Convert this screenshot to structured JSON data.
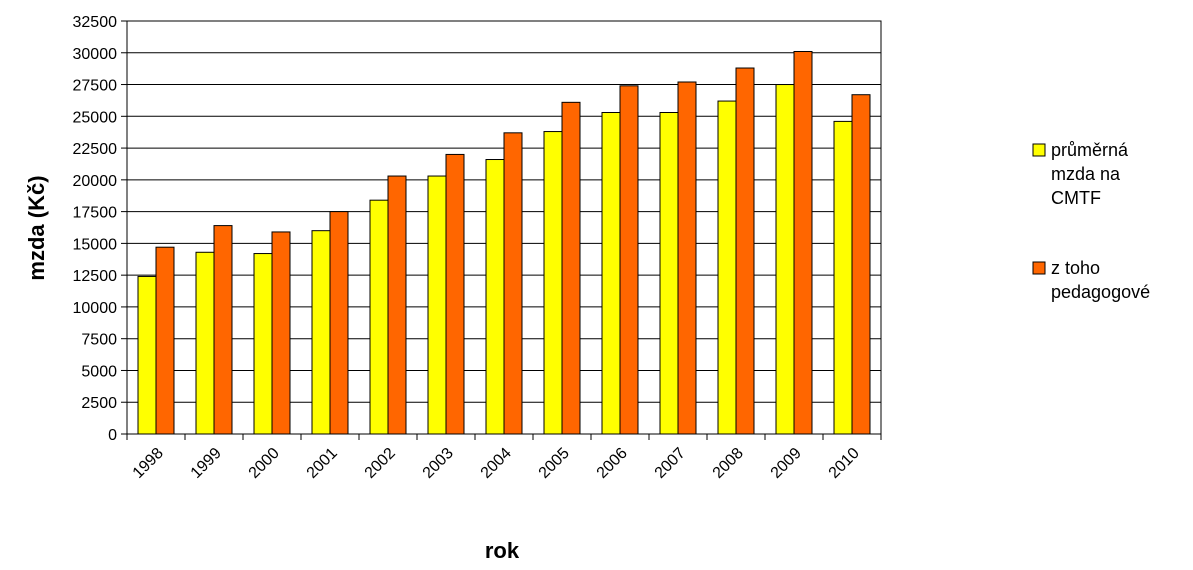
{
  "chart_data": {
    "type": "bar",
    "title": "",
    "xlabel": "rok",
    "ylabel": "mzda (Kč)",
    "categories": [
      "1998",
      "1999",
      "2000",
      "2001",
      "2002",
      "2003",
      "2004",
      "2005",
      "2006",
      "2007",
      "2008",
      "2009",
      "2010"
    ],
    "series": [
      {
        "name": "průměrná mzda na CMTF",
        "name_lines": [
          "průměrná",
          "mzda na",
          "CMTF"
        ],
        "color": "#ffff00",
        "values": [
          12400,
          14300,
          14200,
          16000,
          18400,
          20300,
          21600,
          23800,
          25300,
          25300,
          26200,
          27500,
          24600
        ]
      },
      {
        "name": "z toho pedagogové",
        "name_lines": [
          "z toho",
          "pedagogové"
        ],
        "color": "#ff6600",
        "values": [
          14700,
          16400,
          15900,
          17500,
          20300,
          22000,
          23700,
          26100,
          27400,
          27700,
          28800,
          30100,
          26700
        ]
      }
    ],
    "yticks": [
      "0",
      "2500",
      "5000",
      "7500",
      "10000",
      "12500",
      "15000",
      "17500",
      "20000",
      "22500",
      "25000",
      "27500",
      "30000",
      "32500"
    ],
    "ylim": [
      0,
      32500
    ],
    "grid": true,
    "legend": "right"
  }
}
